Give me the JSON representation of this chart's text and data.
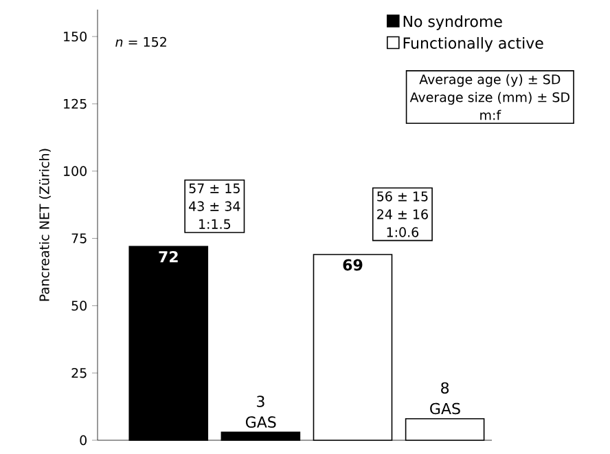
{
  "chart_data": {
    "type": "bar",
    "ylabel": "Pancreatic NET (Zürich)",
    "categories": [
      null,
      null,
      null,
      null
    ],
    "series": [
      {
        "name": "No syndrome",
        "color": "#000000",
        "values": [
          72,
          3,
          null,
          null
        ],
        "value_labels": [
          "72",
          "3 GAS",
          null,
          null
        ]
      },
      {
        "name": "Functionally active",
        "color": "#ffffff",
        "values": [
          null,
          null,
          69,
          8
        ],
        "value_labels": [
          null,
          null,
          "69",
          "8 GAS"
        ]
      }
    ],
    "ylim": [
      0,
      160
    ],
    "yticks": [
      0,
      25,
      50,
      75,
      100,
      125,
      150
    ],
    "legend": "top right",
    "grid": false,
    "annotations": [
      "*n* = 152",
      "Average age (y) ± SD",
      "Average size (mm) ± SD",
      "m:f",
      "57 ± 15",
      "43 ± 34",
      "1:1.5",
      "56 ± 15",
      "24 ± 16",
      "1:0.6"
    ]
  }
}
